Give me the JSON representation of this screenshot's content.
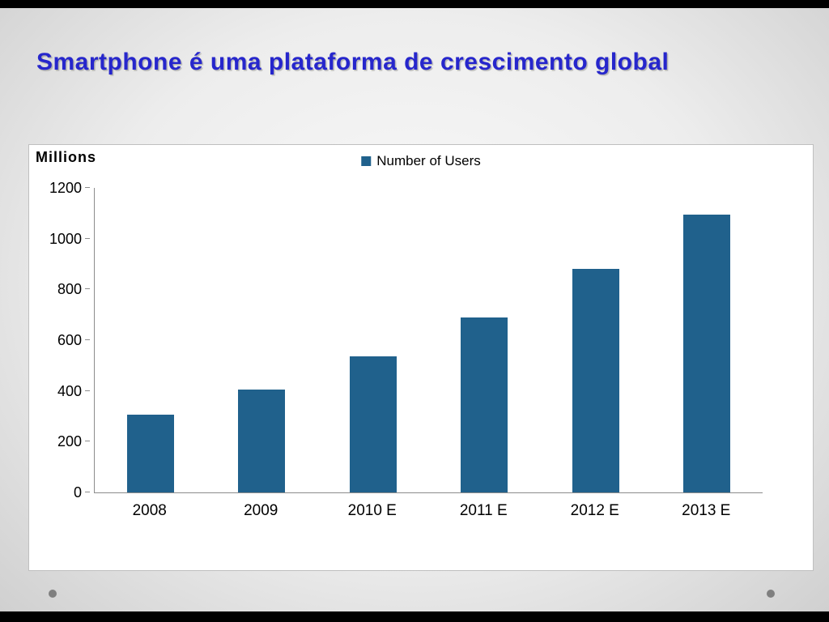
{
  "slide": {
    "title": "Smartphone é uma plataforma de crescimento global"
  },
  "chart_data": {
    "type": "bar",
    "title": "",
    "units_label": "Millions",
    "legend": [
      "Number of Users"
    ],
    "categories": [
      "2008",
      "2009",
      "2010 E",
      "2011 E",
      "2012 E",
      "2013 E"
    ],
    "values": [
      305,
      405,
      535,
      690,
      880,
      1095
    ],
    "ylim": [
      0,
      1200
    ],
    "yticks": [
      0,
      200,
      400,
      600,
      800,
      1000,
      1200
    ],
    "bar_color": "#20618C",
    "grid": false,
    "legend_position": "top-center"
  }
}
